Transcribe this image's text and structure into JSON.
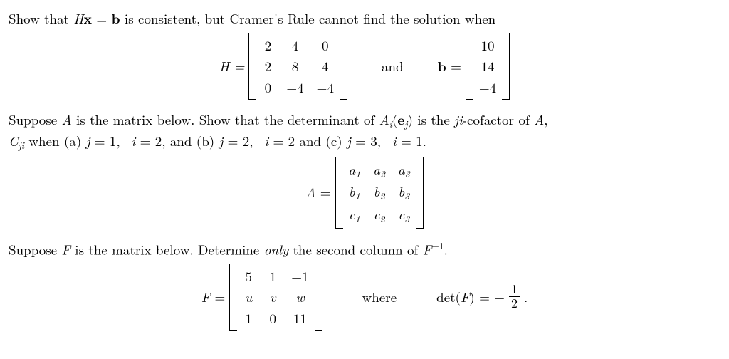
{
  "p1": {
    "text": "Show that Hx = b is consistent, but Cramer's Rule cannot find the solution when",
    "H_label": "H =",
    "H": [
      [
        "2",
        "4",
        "0"
      ],
      [
        "2",
        "8",
        "4"
      ],
      [
        "0",
        "−4",
        "−4"
      ]
    ],
    "conj": "and",
    "b_label": "b =",
    "b": [
      [
        "10"
      ],
      [
        "14"
      ],
      [
        "−4"
      ]
    ]
  },
  "p2": {
    "line1_a": "Suppose ",
    "line1_b": " is the matrix below. Show that the determinant of ",
    "line1_c": " is the ",
    "line1_d": "-cofactor of ",
    "line2_a": " when (a) ",
    "line2_b": ", and (b) ",
    "line2_c": " and (c) ",
    "A_label": "A =",
    "A": [
      [
        "a",
        "a",
        "a"
      ],
      [
        "b",
        "b",
        "b"
      ],
      [
        "c",
        "c",
        "c"
      ]
    ],
    "subs": [
      [
        "1",
        "2",
        "3"
      ],
      [
        "1",
        "2",
        "3"
      ],
      [
        "1",
        "2",
        "3"
      ]
    ]
  },
  "p3": {
    "text_a": "Suppose ",
    "text_b": " is the matrix below. Determine ",
    "only": "only",
    "text_c": " the second column of ",
    "F_label": "F =",
    "F": [
      [
        "5",
        "1",
        "−1"
      ],
      [
        "u",
        "v",
        "w"
      ],
      [
        "1",
        "0",
        "11"
      ]
    ],
    "where": "where",
    "det_a": "det(",
    "det_b": ") = −",
    "frac_num": "1",
    "frac_den": "2",
    "period": "."
  }
}
